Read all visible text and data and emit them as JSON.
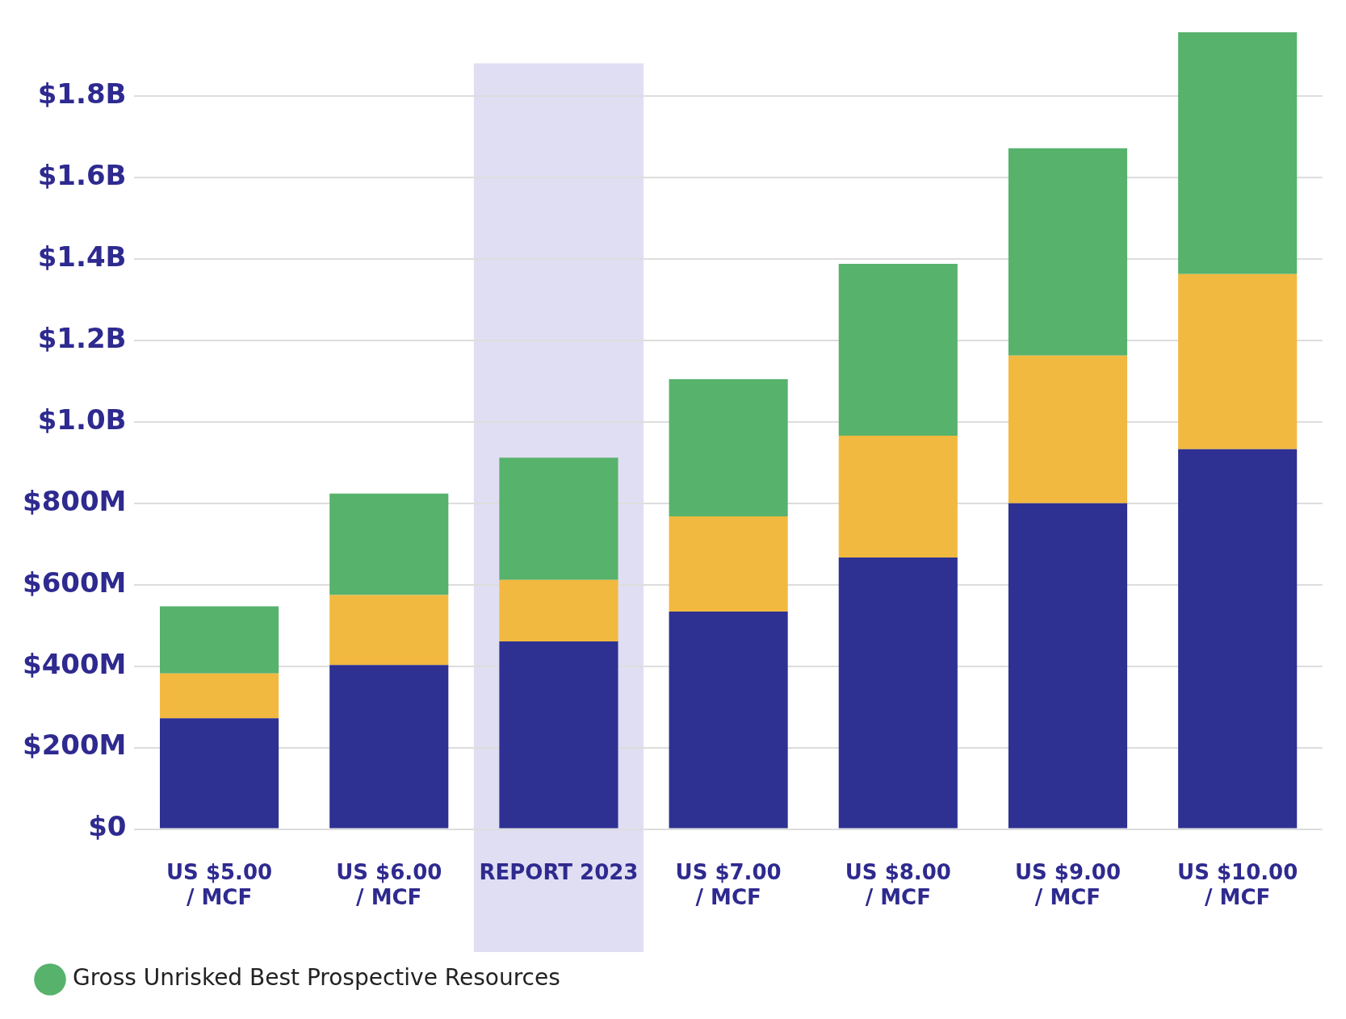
{
  "chart_data": {
    "type": "bar",
    "stacked": true,
    "categories": [
      "US $5.00\n/ MCF",
      "US $6.00\n/ MCF",
      "REPORT 2023",
      "US $7.00\n/ MCF",
      "US $8.00\n/ MCF",
      "US $9.00\n/ MCF",
      "US $10.00\n/ MCF"
    ],
    "series": [
      {
        "color": "#2e3192",
        "values": [
          272000000,
          403000000,
          461000000,
          534000000,
          667000000,
          800000000,
          933000000
        ]
      },
      {
        "color": "#f2b940",
        "values": [
          110000000,
          172000000,
          151000000,
          234000000,
          299000000,
          363000000,
          430000000
        ]
      },
      {
        "name": "Gross Unrisked Best Prospective Resources",
        "color": "#57b26c",
        "values": [
          165000000,
          249000000,
          300000000,
          337000000,
          422000000,
          509000000,
          594000000
        ]
      }
    ],
    "ylim": [
      0,
      1960000000
    ],
    "yticks": [
      {
        "value": 0,
        "label": "$0"
      },
      {
        "value": 200000000,
        "label": "$200M"
      },
      {
        "value": 400000000,
        "label": "$400M"
      },
      {
        "value": 600000000,
        "label": "$600M"
      },
      {
        "value": 800000000,
        "label": "$800M"
      },
      {
        "value": 1000000000,
        "label": "$1.0B"
      },
      {
        "value": 1200000000,
        "label": "$1.2B"
      },
      {
        "value": 1400000000,
        "label": "$1.4B"
      },
      {
        "value": 1600000000,
        "label": "$1.6B"
      },
      {
        "value": 1800000000,
        "label": "$1.8B"
      }
    ],
    "bands": [
      {
        "axis": "x",
        "from": "REPORT 2023",
        "to": "REPORT 2023",
        "color": "#e0def3"
      }
    ],
    "grid": "y",
    "legend": "bottom left"
  }
}
